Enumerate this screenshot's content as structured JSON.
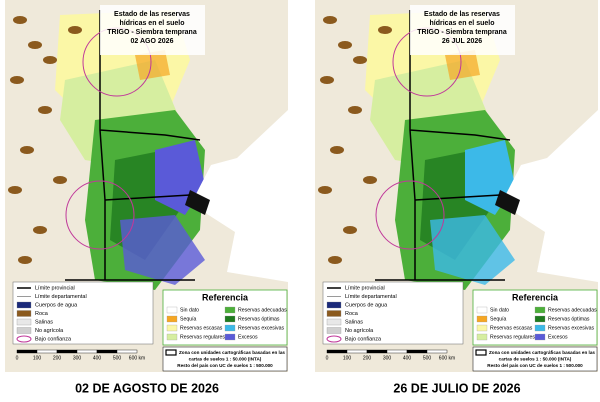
{
  "panels": [
    {
      "title_lines": [
        "Estado de las reservas",
        "hídricas en el suelo",
        "TRIGO - Siembra temprana"
      ],
      "date": "02 AGO 2026",
      "caption": "02 DE AGOSTO DE 2026"
    },
    {
      "title_lines": [
        "Estado de las reservas",
        "hídricas en el suelo",
        "TRIGO - Siembra temprana"
      ],
      "date": "26 JUL 2026",
      "caption": "26 DE JULIO DE 2026"
    }
  ],
  "legend": {
    "left_items": [
      {
        "label": "Límite provincial",
        "color": "#000000"
      },
      {
        "label": "Límite departamental",
        "color": "#9a9a9a"
      },
      {
        "label": "Cuerpos de agua",
        "color": "#1b2a7a"
      },
      {
        "label": "Roca",
        "color": "#8b5a1e"
      },
      {
        "label": "Salinas",
        "color": "#e8e8e8"
      },
      {
        "label": "No agrícola",
        "color": "#d0d0d0"
      },
      {
        "label": "Bajo confianza",
        "color": "#c0399a"
      }
    ],
    "scale": {
      "labels": [
        "0",
        "100",
        "200",
        "300",
        "400",
        "500",
        "600 km"
      ]
    },
    "reference": {
      "title": "Referencia",
      "items": [
        {
          "label": "Sin dato",
          "color": "#ffffff"
        },
        {
          "label": "Sequía",
          "color": "#f5a623"
        },
        {
          "label": "Reservas escasas",
          "color": "#fbf7a6"
        },
        {
          "label": "Reservas regulares",
          "color": "#d6eea0"
        },
        {
          "label": "Reservas adecuadas",
          "color": "#4caf3a"
        },
        {
          "label": "Reservas óptimas",
          "color": "#1f7a1f"
        },
        {
          "label": "Reservas excesivas",
          "color": "#3cb9e8"
        },
        {
          "label": "Excesos",
          "color": "#5a5ad8"
        }
      ]
    },
    "note": [
      "Zona con unidades cartográficas basadas en las",
      "cartas de suelos 1 : 50.000 (INTA)",
      "Resto del país con UC de suelos 1 : 500.000"
    ]
  }
}
